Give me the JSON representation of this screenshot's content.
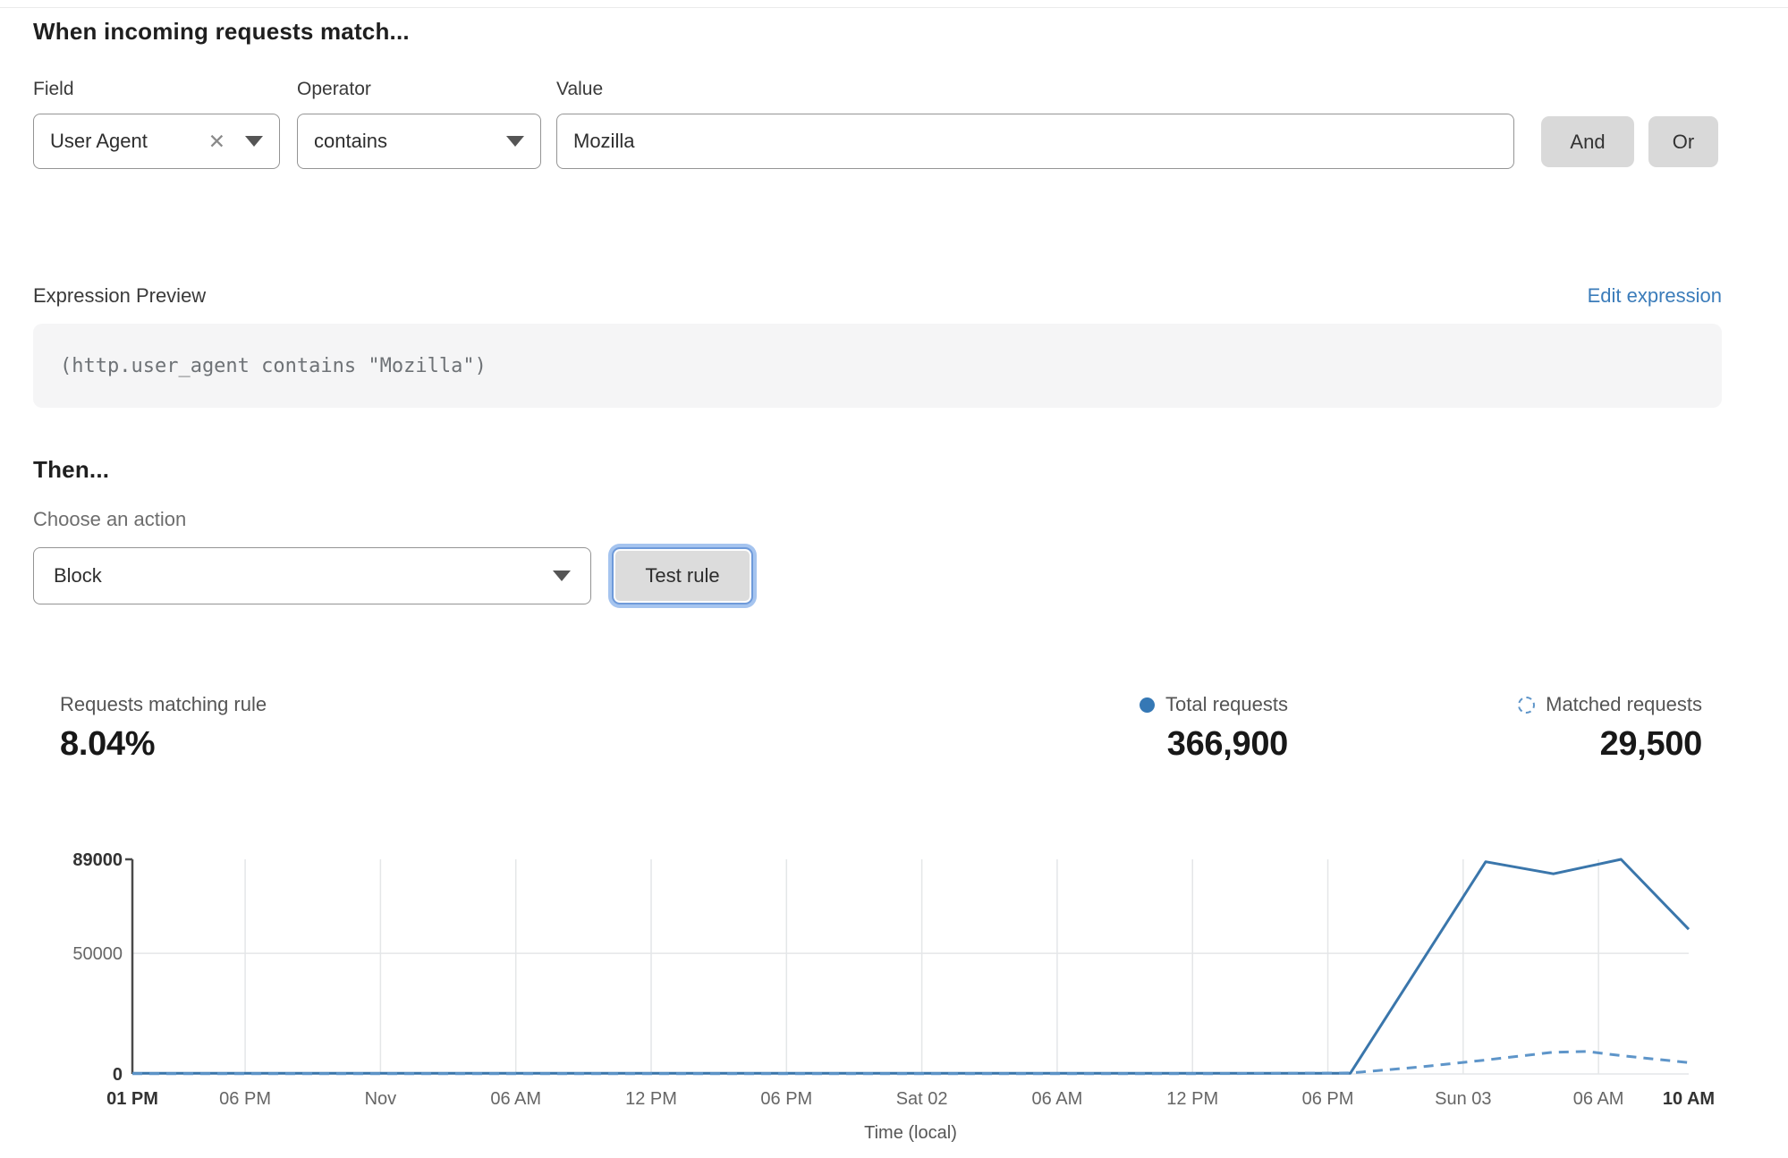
{
  "match": {
    "heading": "When incoming requests match...",
    "field": {
      "label": "Field",
      "value": "User Agent"
    },
    "operator": {
      "label": "Operator",
      "value": "contains"
    },
    "value": {
      "label": "Value",
      "value": "Mozilla"
    },
    "and_label": "And",
    "or_label": "Or"
  },
  "expression": {
    "label": "Expression Preview",
    "edit_link": "Edit expression",
    "code": "(http.user_agent contains \"Mozilla\")"
  },
  "action": {
    "heading": "Then...",
    "choose_label": "Choose an action",
    "value": "Block",
    "test_button": "Test rule"
  },
  "stats": {
    "matching": {
      "label": "Requests matching rule",
      "value": "8.04%"
    },
    "total": {
      "label": "Total requests",
      "value": "366,900"
    },
    "matched": {
      "label": "Matched requests",
      "value": "29,500"
    }
  },
  "colors": {
    "total_line": "#3a76ab",
    "matched_line": "#5e95c9",
    "legend_dot": "#3578b5",
    "link_blue": "#3b7cba",
    "grid": "#e4e6e8",
    "axis": "#4a4a4a",
    "tick_bold": "#333333",
    "tick_normal": "#666666"
  },
  "chart_data": {
    "type": "line",
    "title": "",
    "xlabel": "Time (local)",
    "ylabel": "",
    "ylim": [
      0,
      89000
    ],
    "x_hours_range": [
      0,
      69
    ],
    "grid": true,
    "legend_position": "top-right",
    "yticks": [
      {
        "value": 89000,
        "label": "89000",
        "bold": true
      },
      {
        "value": 50000,
        "label": "50000",
        "bold": false
      },
      {
        "value": 0,
        "label": "0",
        "bold": true
      }
    ],
    "xticks": [
      {
        "hour": 0,
        "label": "01 PM",
        "bold": true
      },
      {
        "hour": 5,
        "label": "06 PM",
        "bold": false
      },
      {
        "hour": 11,
        "label": "Nov",
        "bold": false
      },
      {
        "hour": 17,
        "label": "06 AM",
        "bold": false
      },
      {
        "hour": 23,
        "label": "12 PM",
        "bold": false
      },
      {
        "hour": 29,
        "label": "06 PM",
        "bold": false
      },
      {
        "hour": 35,
        "label": "Sat 02",
        "bold": false
      },
      {
        "hour": 41,
        "label": "06 AM",
        "bold": false
      },
      {
        "hour": 47,
        "label": "12 PM",
        "bold": false
      },
      {
        "hour": 53,
        "label": "06 PM",
        "bold": false
      },
      {
        "hour": 59,
        "label": "Sun 03",
        "bold": false
      },
      {
        "hour": 65,
        "label": "06 AM",
        "bold": false
      },
      {
        "hour": 69,
        "label": "10 AM",
        "bold": true
      }
    ],
    "series": [
      {
        "name": "Total requests",
        "style": "solid",
        "points": [
          [
            0,
            300
          ],
          [
            6,
            300
          ],
          [
            12,
            300
          ],
          [
            18,
            300
          ],
          [
            24,
            300
          ],
          [
            30,
            300
          ],
          [
            36,
            300
          ],
          [
            42,
            300
          ],
          [
            48,
            300
          ],
          [
            54,
            300
          ],
          [
            60,
            88000
          ],
          [
            63,
            83000
          ],
          [
            66,
            89000
          ],
          [
            69,
            60000
          ]
        ]
      },
      {
        "name": "Matched requests",
        "style": "dashed",
        "points": [
          [
            0,
            100
          ],
          [
            6,
            100
          ],
          [
            12,
            100
          ],
          [
            18,
            100
          ],
          [
            24,
            100
          ],
          [
            30,
            100
          ],
          [
            36,
            100
          ],
          [
            42,
            100
          ],
          [
            48,
            100
          ],
          [
            54,
            400
          ],
          [
            57,
            2800
          ],
          [
            60,
            5800
          ],
          [
            63,
            9000
          ],
          [
            64.5,
            9300
          ],
          [
            66,
            7600
          ],
          [
            69,
            4700
          ]
        ]
      }
    ]
  }
}
